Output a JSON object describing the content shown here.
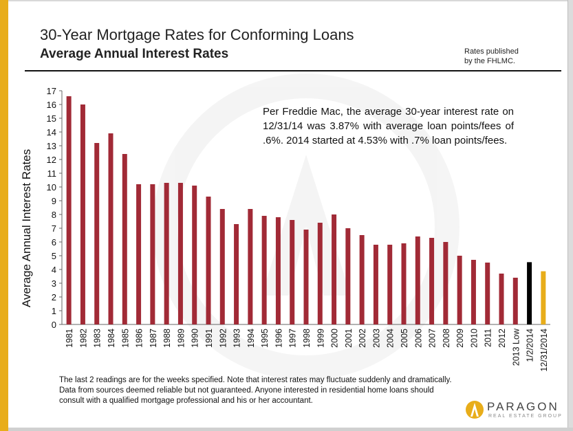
{
  "header": {
    "title": "30-Year Mortgage Rates for Conforming Loans",
    "subtitle": "Average Annual Interest Rates",
    "source_note_line1": "Rates published",
    "source_note_line2": "by the FHLMC."
  },
  "annotation": "Per Freddie Mac, the average 30-year interest rate on 12/31/14 was 3.87% with average loan points/fees of .6%. 2014 started at 4.53% with .7% loan points/fees.",
  "footnote": "The last 2 readings are for the weeks specified. Note that interest rates may fluctuate suddenly and dramatically. Data from sources deemed reliable but not guaranteed. Anyone interested in residential home loans should consult with a qualified mortgage professional and his or her accountant.",
  "logo": {
    "name": "PARAGON",
    "tagline": "REAL ESTATE GROUP",
    "icon": "paragon-logo-icon"
  },
  "colors": {
    "bar": "#a12a36",
    "bar_2014_start": "#000000",
    "bar_2014_end": "#e8ad1a",
    "accent": "#e8ad1a"
  },
  "chart_data": {
    "type": "bar",
    "title": "30-Year Mortgage Rates for Conforming Loans",
    "subtitle": "Average Annual Interest Rates",
    "xlabel": "",
    "ylabel": "Average Annual Interest Rates",
    "ylim": [
      0,
      17
    ],
    "yticks": [
      0,
      1,
      2,
      3,
      4,
      5,
      6,
      7,
      8,
      9,
      10,
      11,
      12,
      13,
      14,
      15,
      16,
      17
    ],
    "grid": false,
    "legend": "none",
    "categories": [
      "1981",
      "1982",
      "1983",
      "1984",
      "1985",
      "1986",
      "1987",
      "1988",
      "1989",
      "1990",
      "1991",
      "1992",
      "1993",
      "1994",
      "1995",
      "1996",
      "1997",
      "1998",
      "1999",
      "2000",
      "2001",
      "2002",
      "2003",
      "2004",
      "2005",
      "2006",
      "2007",
      "2008",
      "2009",
      "2010",
      "2011",
      "2012",
      "2013 Low",
      "1/2/2014",
      "12/31/2014"
    ],
    "values": [
      16.6,
      16.0,
      13.2,
      13.9,
      12.4,
      10.2,
      10.2,
      10.3,
      10.3,
      10.1,
      9.3,
      8.4,
      7.3,
      8.4,
      7.9,
      7.8,
      7.6,
      6.9,
      7.4,
      8.0,
      7.0,
      6.5,
      5.8,
      5.8,
      5.9,
      6.4,
      6.3,
      6.0,
      5.0,
      4.7,
      4.5,
      3.7,
      3.4,
      4.53,
      3.87
    ]
  }
}
